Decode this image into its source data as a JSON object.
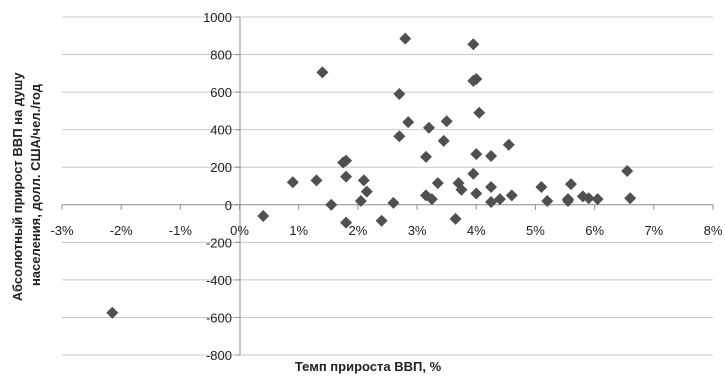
{
  "chart_data": {
    "type": "scatter",
    "title": "",
    "xlabel": "Темп прироста ВВП, %",
    "ylabel": [
      "Абсолютный прирост ВВП на душу",
      "населения, долл. США/чел./год"
    ],
    "xlim": [
      -0.03,
      0.08
    ],
    "ylim": [
      -800,
      1000
    ],
    "x_ticks": [
      -0.03,
      -0.02,
      -0.01,
      0,
      0.01,
      0.02,
      0.03,
      0.04,
      0.05,
      0.06,
      0.07,
      0.08
    ],
    "x_tick_labels": [
      "-3%",
      "-2%",
      "-1%",
      "0%",
      "1%",
      "2%",
      "3%",
      "4%",
      "5%",
      "6%",
      "7%",
      "8%"
    ],
    "y_ticks": [
      -800,
      -600,
      -400,
      -200,
      0,
      200,
      400,
      600,
      800,
      1000
    ],
    "y_tick_labels": [
      "-800",
      "-600",
      "-400",
      "-200",
      "0",
      "200",
      "400",
      "600",
      "800",
      "1000"
    ],
    "grid": "horizontal",
    "legend": "none",
    "marker": "diamond",
    "colors": {
      "marker": "#505050",
      "grid": "#c8c8c8",
      "axis": "#8c8c8c",
      "text": "#222222"
    },
    "points": [
      {
        "x": -0.0215,
        "y": -575
      },
      {
        "x": 0.004,
        "y": -60
      },
      {
        "x": 0.009,
        "y": 120
      },
      {
        "x": 0.013,
        "y": 130
      },
      {
        "x": 0.014,
        "y": 705
      },
      {
        "x": 0.0155,
        "y": 0
      },
      {
        "x": 0.0175,
        "y": 225
      },
      {
        "x": 0.018,
        "y": 235
      },
      {
        "x": 0.018,
        "y": 150
      },
      {
        "x": 0.018,
        "y": -95
      },
      {
        "x": 0.0205,
        "y": 20
      },
      {
        "x": 0.021,
        "y": 130
      },
      {
        "x": 0.0215,
        "y": 70
      },
      {
        "x": 0.024,
        "y": -85
      },
      {
        "x": 0.026,
        "y": 10
      },
      {
        "x": 0.027,
        "y": 590
      },
      {
        "x": 0.027,
        "y": 365
      },
      {
        "x": 0.028,
        "y": 885
      },
      {
        "x": 0.0285,
        "y": 440
      },
      {
        "x": 0.0315,
        "y": 255
      },
      {
        "x": 0.032,
        "y": 410
      },
      {
        "x": 0.0315,
        "y": 50
      },
      {
        "x": 0.0325,
        "y": 30
      },
      {
        "x": 0.0335,
        "y": 115
      },
      {
        "x": 0.0345,
        "y": 340
      },
      {
        "x": 0.035,
        "y": 445
      },
      {
        "x": 0.0365,
        "y": -75
      },
      {
        "x": 0.037,
        "y": 115
      },
      {
        "x": 0.0375,
        "y": 80
      },
      {
        "x": 0.0395,
        "y": 855
      },
      {
        "x": 0.0395,
        "y": 660
      },
      {
        "x": 0.04,
        "y": 670
      },
      {
        "x": 0.0405,
        "y": 490
      },
      {
        "x": 0.04,
        "y": 270
      },
      {
        "x": 0.0395,
        "y": 165
      },
      {
        "x": 0.04,
        "y": 60
      },
      {
        "x": 0.0425,
        "y": 260
      },
      {
        "x": 0.0425,
        "y": 95
      },
      {
        "x": 0.0425,
        "y": 15
      },
      {
        "x": 0.044,
        "y": 30
      },
      {
        "x": 0.0455,
        "y": 320
      },
      {
        "x": 0.046,
        "y": 50
      },
      {
        "x": 0.051,
        "y": 95
      },
      {
        "x": 0.052,
        "y": 20
      },
      {
        "x": 0.0555,
        "y": 30
      },
      {
        "x": 0.0555,
        "y": 20
      },
      {
        "x": 0.056,
        "y": 110
      },
      {
        "x": 0.058,
        "y": 45
      },
      {
        "x": 0.059,
        "y": 35
      },
      {
        "x": 0.0605,
        "y": 30
      },
      {
        "x": 0.0655,
        "y": 180
      },
      {
        "x": 0.066,
        "y": 35
      }
    ]
  }
}
